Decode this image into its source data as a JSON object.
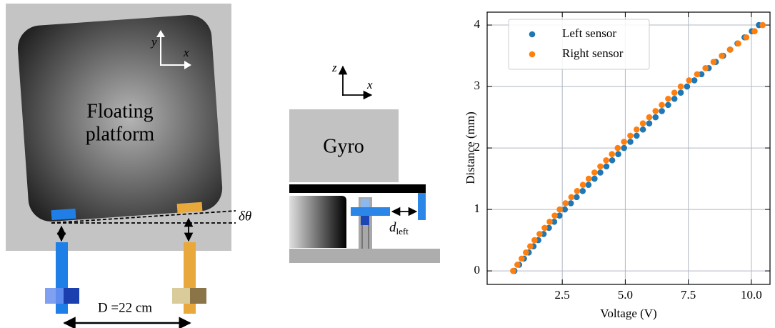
{
  "diagrams": {
    "left": {
      "platform_label": [
        "Floating",
        "platform"
      ],
      "axis_y": "y",
      "axis_x": "x",
      "angle": "δθ",
      "separation": "D =22 cm"
    },
    "middle": {
      "axis_z": "z",
      "axis_x": "x",
      "gyro": "Gyro",
      "distance_symbol": "d",
      "distance_subscript": "left"
    }
  },
  "chart_data": {
    "type": "scatter",
    "x_label": "Voltage (V)",
    "y_label": "Distance (mm)",
    "xlim": [
      -0.48,
      10.74
    ],
    "ylim": [
      -0.22,
      4.21
    ],
    "xticks": [
      {
        "value": 2.5,
        "label": "2.5"
      },
      {
        "value": 5,
        "label": "5.0"
      },
      {
        "value": 7.5,
        "label": "7.5"
      },
      {
        "value": 10,
        "label": "10.0"
      }
    ],
    "yticks": [
      0,
      1,
      2,
      3,
      4
    ],
    "grid": true,
    "legend": "upper left",
    "series": [
      {
        "name": "Left sensor",
        "color": "#1f77b4",
        "x": [
          0.6,
          0.79,
          0.98,
          1.17,
          1.36,
          1.55,
          1.76,
          1.97,
          2.18,
          2.39,
          2.6,
          2.84,
          3.07,
          3.31,
          3.54,
          3.78,
          4.01,
          4.25,
          4.48,
          4.72,
          4.95,
          5.2,
          5.45,
          5.7,
          5.95,
          6.2,
          6.45,
          6.7,
          6.95,
          7.2,
          7.45,
          7.74,
          8.02,
          8.31,
          8.59,
          8.88,
          9.16,
          9.45,
          9.73,
          10.02,
          10.3
        ],
        "values": [
          0,
          0.1,
          0.2,
          0.3,
          0.4,
          0.5,
          0.6,
          0.7,
          0.8,
          0.9,
          1,
          1.1,
          1.2,
          1.3,
          1.4,
          1.5,
          1.6,
          1.7,
          1.8,
          1.9,
          2,
          2.1,
          2.2,
          2.3,
          2.4,
          2.5,
          2.6,
          2.7,
          2.8,
          2.9,
          3,
          3.1,
          3.2,
          3.3,
          3.4,
          3.5,
          3.6,
          3.7,
          3.8,
          3.9,
          4
        ]
      },
      {
        "name": "Right sensor",
        "color": "#ff7f0e",
        "x": [
          0.55,
          0.72,
          0.89,
          1.06,
          1.23,
          1.4,
          1.6,
          1.8,
          2.0,
          2.2,
          2.4,
          2.63,
          2.86,
          3.09,
          3.32,
          3.55,
          3.78,
          4.01,
          4.24,
          4.47,
          4.7,
          4.95,
          5.2,
          5.45,
          5.7,
          5.95,
          6.2,
          6.45,
          6.7,
          6.95,
          7.2,
          7.53,
          7.85,
          8.18,
          8.5,
          8.83,
          9.15,
          9.48,
          9.8,
          10.13,
          10.45
        ],
        "values": [
          0,
          0.1,
          0.2,
          0.3,
          0.4,
          0.5,
          0.6,
          0.7,
          0.8,
          0.9,
          1,
          1.1,
          1.2,
          1.3,
          1.4,
          1.5,
          1.6,
          1.7,
          1.8,
          1.9,
          2,
          2.1,
          2.2,
          2.3,
          2.4,
          2.5,
          2.6,
          2.7,
          2.8,
          2.9,
          3,
          3.1,
          3.2,
          3.3,
          3.4,
          3.5,
          3.6,
          3.7,
          3.8,
          3.9,
          4
        ]
      }
    ]
  }
}
